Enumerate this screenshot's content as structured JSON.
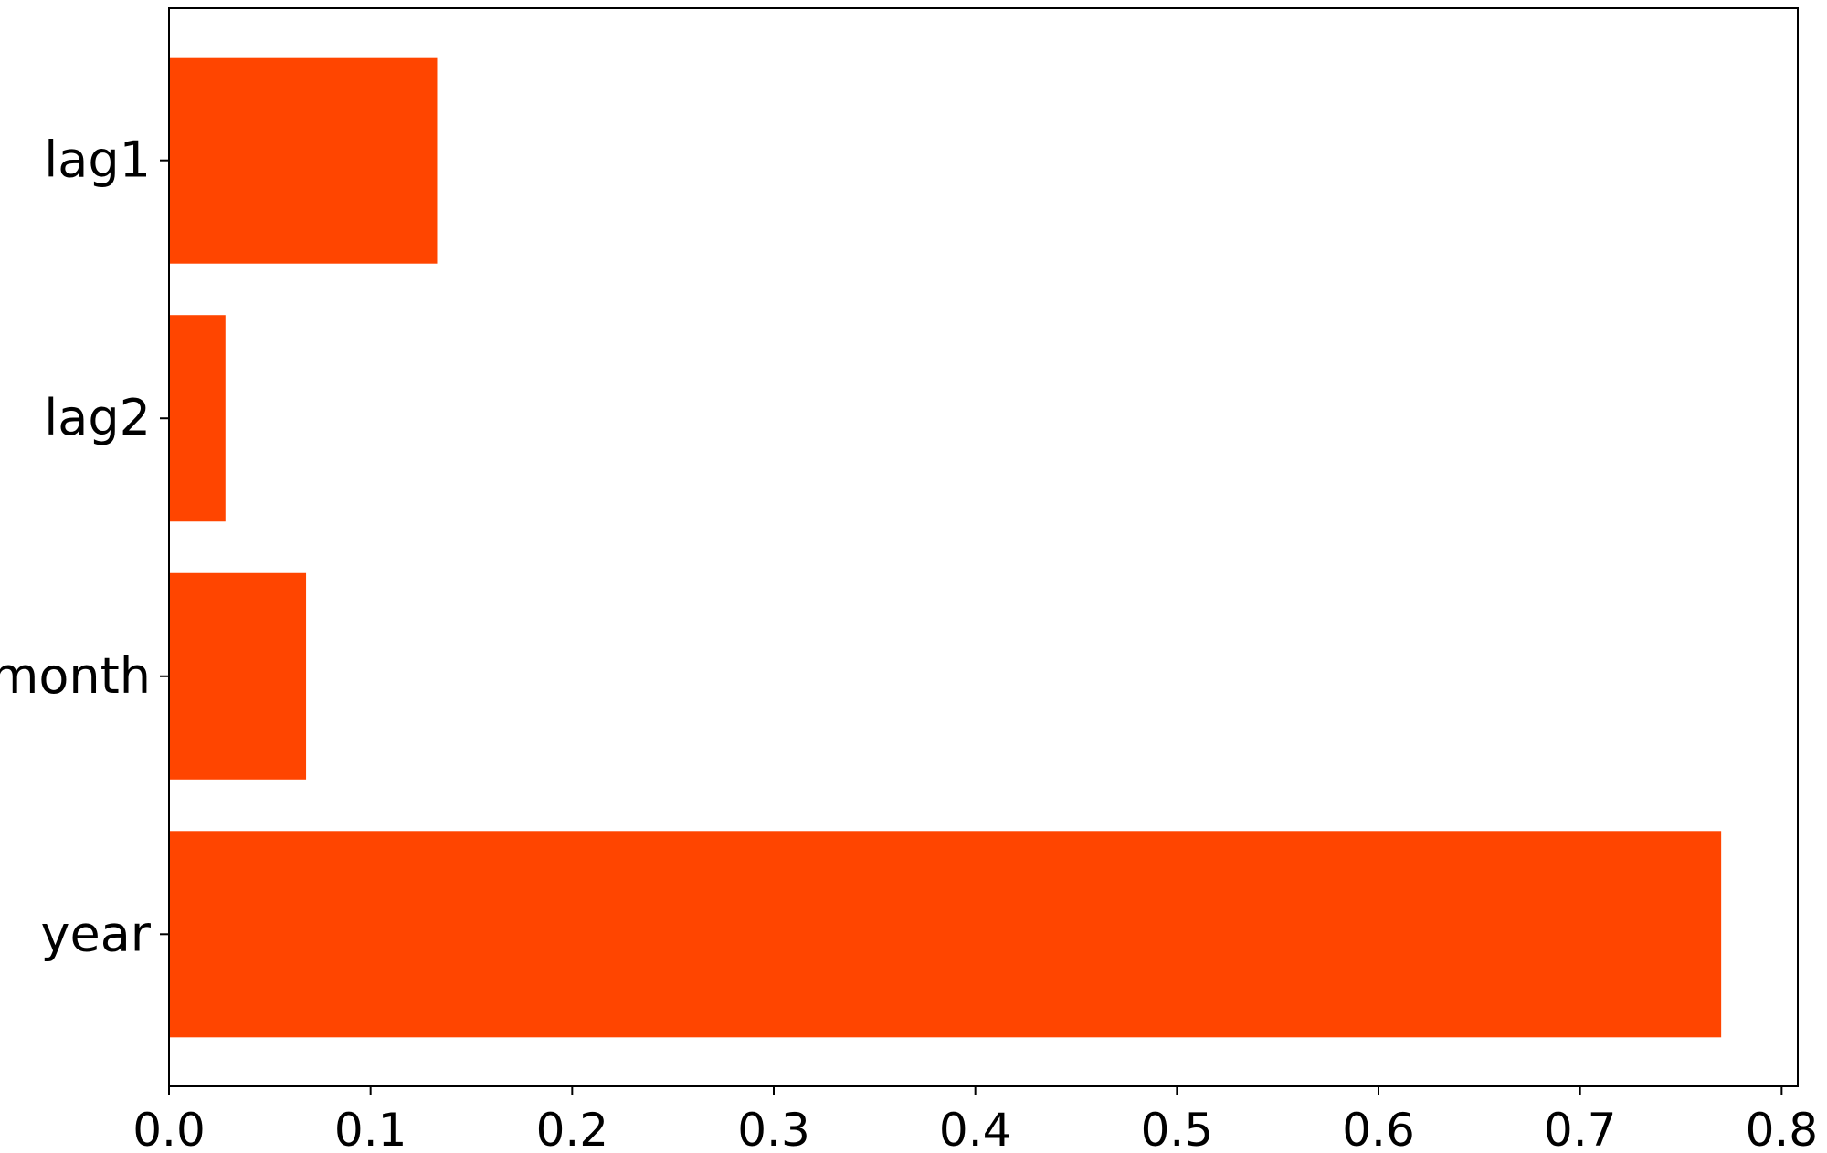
{
  "chart_data": {
    "type": "bar",
    "orientation": "horizontal",
    "title": "",
    "xlabel": "",
    "ylabel": "",
    "categories": [
      "year",
      "month",
      "lag2",
      "lag1"
    ],
    "values": [
      0.77,
      0.068,
      0.028,
      0.133
    ],
    "xlim": [
      0,
      0.808
    ],
    "ylim": [
      -0.59,
      3.59
    ],
    "xticks": [
      0.0,
      0.1,
      0.2,
      0.3,
      0.4,
      0.5,
      0.6,
      0.7,
      0.8
    ],
    "xtick_labels": [
      "0.0",
      "0.1",
      "0.2",
      "0.3",
      "0.4",
      "0.5",
      "0.6",
      "0.7",
      "0.8"
    ],
    "bar_color": "#ff4500",
    "grid": false,
    "legend": "none"
  }
}
